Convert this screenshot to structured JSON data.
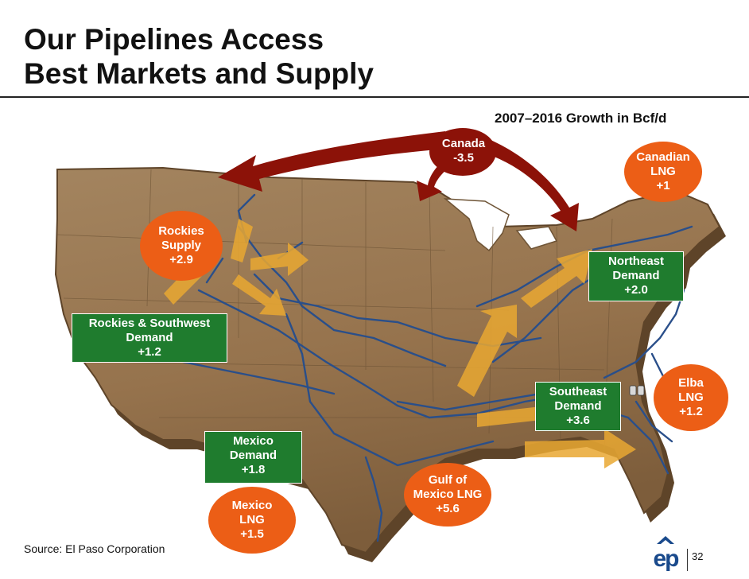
{
  "title": {
    "line1": "Our Pipelines Access",
    "line2": "Best Markets and Supply"
  },
  "subtitle": "2007–2016 Growth in Bcf/d",
  "canada": {
    "name": "Canada",
    "value": "-3.5"
  },
  "labels": {
    "canadian_lng": {
      "line1": "Canadian",
      "line2": "LNG",
      "value": "+1"
    },
    "rockies_supply": {
      "line1": "Rockies",
      "line2": "Supply",
      "value": "+2.9"
    },
    "northeast_demand": {
      "line1": "Northeast",
      "line2": "Demand",
      "value": "+2.0"
    },
    "rockies_sw_demand": {
      "line1": "Rockies & Southwest",
      "line2": "Demand",
      "value": "+1.2"
    },
    "southeast_demand": {
      "line1": "Southeast",
      "line2": "Demand",
      "value": "+3.6"
    },
    "elba_lng": {
      "line1": "Elba",
      "line2": "LNG",
      "value": "+1.2"
    },
    "mexico_demand": {
      "line1": "Mexico",
      "line2": "Demand",
      "value": "+1.8"
    },
    "gulf_lng": {
      "line1": "Gulf of",
      "line2": "Mexico LNG",
      "value": "+5.6"
    },
    "mexico_lng": {
      "line1": "Mexico",
      "line2": "LNG",
      "value": "+1.5"
    }
  },
  "source": "Source: El Paso Corporation",
  "page_number": "32",
  "logo_text": "ep",
  "colors": {
    "land": "#a07e58",
    "land_dark": "#6e5436",
    "canada_arrow": "#8c1208",
    "flow_arrow": "#e9a832",
    "pipeline": "#2a4f8a",
    "label_orange": "#ec5e16",
    "label_green": "#1f7c2e",
    "logo_blue": "#1a4a8c"
  }
}
